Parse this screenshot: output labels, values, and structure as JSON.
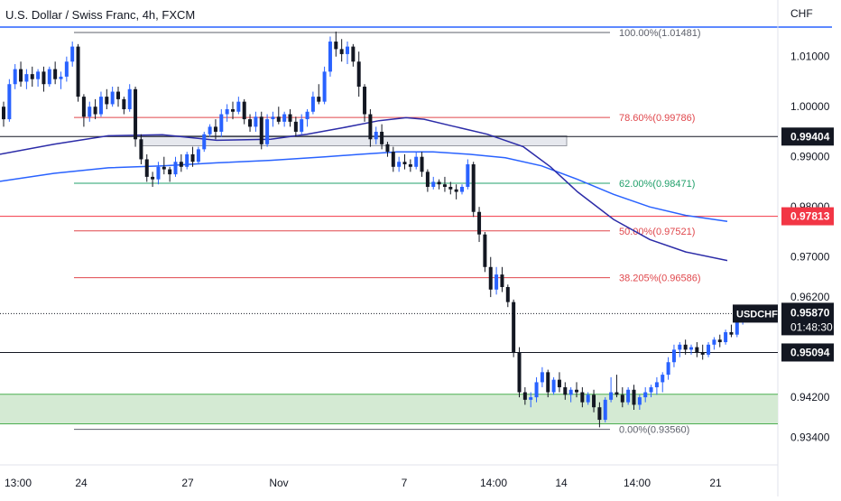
{
  "header": {
    "title": "U.S. Dollar / Swiss Franc, 4h, FXCM",
    "currency": "CHF"
  },
  "colors": {
    "up": "#2962ff",
    "down": "#131722",
    "fib_red": "#e0474c",
    "fib_green": "#22a06b",
    "fib_gray": "#5d606b",
    "ema_fast": "#2c2ca8",
    "ema_slow": "#2962ff",
    "zone_fill": "#d4ead3",
    "zone_border": "#4caf50",
    "badge_red": "#f23645",
    "badge_dark": "#131722",
    "axis_text": "#131722"
  },
  "chart_data": {
    "type": "candlestick",
    "symbol": "USDCHF",
    "timeframe": "4h",
    "x_ticks": [
      "13:00",
      "24",
      "27",
      "Nov",
      "7",
      "14:00",
      "14",
      "14:00",
      "21"
    ],
    "y_ticks": [
      1.01,
      1.0,
      0.99,
      0.98,
      0.97,
      0.962,
      0.942,
      0.934
    ],
    "y_tick_labels": [
      "1.01000",
      "1.00000",
      "0.99000",
      "0.98000",
      "0.97000",
      "0.96200",
      "0.94200",
      "0.93400"
    ],
    "ylim": [
      0.9285,
      1.0213
    ],
    "grid": false,
    "fib_levels": [
      {
        "label": "100.00%(1.01481)",
        "price": 1.01481,
        "color": "gray"
      },
      {
        "label": "78.60%(0.99786)",
        "price": 0.99786,
        "color": "red"
      },
      {
        "label": "62.00%(0.98471)",
        "price": 0.98471,
        "color": "green"
      },
      {
        "label": "50.00%(0.97521)",
        "price": 0.97521,
        "color": "red"
      },
      {
        "label": "38.205%(0.96586)",
        "price": 0.96586,
        "color": "red"
      },
      {
        "label": "0.00%(0.93560)",
        "price": 0.9356,
        "color": "gray"
      }
    ],
    "horizontal_levels": [
      {
        "price": 0.99404,
        "label": "0.99404",
        "badge": "dark"
      },
      {
        "price": 0.97813,
        "label": "0.97813",
        "badge": "red"
      },
      {
        "price": 0.95094,
        "label": "0.95094",
        "badge": "dark"
      }
    ],
    "current_price": {
      "price": 0.9587,
      "symbol_label": "USDCHF",
      "price_label": "0.95870",
      "countdown": "01:48:30"
    },
    "zones": [
      {
        "type": "demand",
        "top": 0.9426,
        "bottom": 0.9367
      },
      {
        "type": "resistance",
        "top": 0.9942,
        "bottom": 0.9922
      }
    ],
    "moving_averages": [
      {
        "color": "ema_slow",
        "points": [
          [
            0,
            0.9851
          ],
          [
            60,
            0.9867
          ],
          [
            120,
            0.9878
          ],
          [
            180,
            0.9882
          ],
          [
            240,
            0.9888
          ],
          [
            300,
            0.9893
          ],
          [
            360,
            0.99
          ],
          [
            400,
            0.9905
          ],
          [
            440,
            0.991
          ],
          [
            480,
            0.991
          ],
          [
            520,
            0.9905
          ],
          [
            560,
            0.9898
          ],
          [
            600,
            0.9882
          ],
          [
            640,
            0.9855
          ],
          [
            680,
            0.9825
          ],
          [
            720,
            0.98
          ],
          [
            760,
            0.9783
          ],
          [
            806,
            0.9771
          ]
        ]
      },
      {
        "color": "ema_fast",
        "points": [
          [
            0,
            0.9905
          ],
          [
            60,
            0.9925
          ],
          [
            120,
            0.9942
          ],
          [
            180,
            0.9944
          ],
          [
            240,
            0.9933
          ],
          [
            300,
            0.9935
          ],
          [
            340,
            0.9945
          ],
          [
            380,
            0.9958
          ],
          [
            420,
            0.9972
          ],
          [
            450,
            0.9978
          ],
          [
            470,
            0.9975
          ],
          [
            500,
            0.9962
          ],
          [
            540,
            0.9945
          ],
          [
            580,
            0.992
          ],
          [
            610,
            0.988
          ],
          [
            640,
            0.983
          ],
          [
            680,
            0.9775
          ],
          [
            720,
            0.9735
          ],
          [
            760,
            0.971
          ],
          [
            806,
            0.9693
          ]
        ]
      }
    ],
    "candles": [
      [
        1.0,
        1.001,
        0.996,
        0.9975
      ],
      [
        0.9975,
        1.0055,
        0.997,
        1.0045
      ],
      [
        1.0045,
        1.0085,
        1.0035,
        1.0075
      ],
      [
        1.0075,
        1.009,
        1.004,
        1.005
      ],
      [
        1.005,
        1.0075,
        1.0035,
        1.0065
      ],
      [
        1.0065,
        1.008,
        1.004,
        1.0055
      ],
      [
        1.0055,
        1.0075,
        1.004,
        1.007
      ],
      [
        1.007,
        1.008,
        1.003,
        1.0045
      ],
      [
        1.0045,
        1.008,
        1.004,
        1.0075
      ],
      [
        1.0075,
        1.009,
        1.0045,
        1.0055
      ],
      [
        1.0055,
        1.007,
        1.0035,
        1.006
      ],
      [
        1.006,
        1.01,
        1.005,
        1.009
      ],
      [
        1.009,
        1.013,
        1.008,
        1.012
      ],
      [
        1.012,
        1.0125,
        1.001,
        1.002
      ],
      [
        1.002,
        1.0025,
        0.996,
        0.998
      ],
      [
        0.998,
        1.001,
        0.997,
        1.0
      ],
      [
        1.0,
        1.0015,
        0.9975,
        0.9985
      ],
      [
        0.9985,
        1.003,
        0.998,
        1.002
      ],
      [
        1.002,
        1.0035,
        0.9995,
        1.0005
      ],
      [
        1.0005,
        1.004,
        1.0,
        1.003
      ],
      [
        1.003,
        1.004,
        1.0,
        1.0015
      ],
      [
        1.0015,
        1.002,
        0.9985,
        0.9995
      ],
      [
        0.9995,
        1.0045,
        0.999,
        1.0035
      ],
      [
        1.0035,
        1.004,
        0.992,
        0.9935
      ],
      [
        0.9935,
        0.9945,
        0.9885,
        0.9895
      ],
      [
        0.9895,
        0.9905,
        0.985,
        0.986
      ],
      [
        0.986,
        0.987,
        0.984,
        0.9855
      ],
      [
        0.9855,
        0.989,
        0.9845,
        0.988
      ],
      [
        0.988,
        0.99,
        0.9865,
        0.9875
      ],
      [
        0.9875,
        0.988,
        0.985,
        0.9865
      ],
      [
        0.9865,
        0.99,
        0.986,
        0.989
      ],
      [
        0.989,
        0.9905,
        0.987,
        0.988
      ],
      [
        0.988,
        0.991,
        0.9875,
        0.9905
      ],
      [
        0.9905,
        0.992,
        0.988,
        0.989
      ],
      [
        0.989,
        0.992,
        0.9885,
        0.9915
      ],
      [
        0.9915,
        0.995,
        0.991,
        0.9945
      ],
      [
        0.9945,
        0.9965,
        0.994,
        0.996
      ],
      [
        0.996,
        0.9975,
        0.9935,
        0.995
      ],
      [
        0.995,
        0.9995,
        0.994,
        0.9985
      ],
      [
        0.9985,
        1.0005,
        0.997,
        0.9995
      ],
      [
        0.9995,
        1.001,
        0.9975,
        0.999
      ],
      [
        0.999,
        1.002,
        0.9985,
        1.001
      ],
      [
        1.001,
        1.0015,
        0.9965,
        0.9975
      ],
      [
        0.9975,
        0.9985,
        0.995,
        0.996
      ],
      [
        0.996,
        0.999,
        0.995,
        0.998
      ],
      [
        0.998,
        0.999,
        0.9915,
        0.9925
      ],
      [
        0.9925,
        0.9985,
        0.992,
        0.9975
      ],
      [
        0.9975,
        0.999,
        0.996,
        0.998
      ],
      [
        0.998,
        1.0,
        0.9965,
        0.997
      ],
      [
        0.997,
        0.999,
        0.996,
        0.9985
      ],
      [
        0.9985,
        0.9995,
        0.996,
        0.997
      ],
      [
        0.997,
        0.998,
        0.994,
        0.995
      ],
      [
        0.995,
        0.9985,
        0.9945,
        0.9975
      ],
      [
        0.9975,
        0.9995,
        0.996,
        0.999
      ],
      [
        0.999,
        1.003,
        0.9985,
        1.002
      ],
      [
        1.002,
        1.0045,
        1.0005,
        1.001
      ],
      [
        1.001,
        1.008,
        1.0005,
        1.007
      ],
      [
        1.007,
        1.014,
        1.006,
        1.013
      ],
      [
        1.013,
        1.015,
        1.01,
        1.0115
      ],
      [
        1.0115,
        1.0135,
        1.009,
        1.0105
      ],
      [
        1.0105,
        1.013,
        1.0085,
        1.012
      ],
      [
        1.012,
        1.0125,
        1.008,
        1.009
      ],
      [
        1.009,
        1.011,
        1.002,
        1.004
      ],
      [
        1.004,
        1.0045,
        0.997,
        0.9985
      ],
      [
        0.9985,
        0.9995,
        0.992,
        0.9935
      ],
      [
        0.9935,
        0.996,
        0.9925,
        0.995
      ],
      [
        0.995,
        0.9965,
        0.9915,
        0.9925
      ],
      [
        0.9925,
        0.993,
        0.99,
        0.991
      ],
      [
        0.991,
        0.992,
        0.987,
        0.988
      ],
      [
        0.988,
        0.99,
        0.987,
        0.989
      ],
      [
        0.989,
        0.9905,
        0.9875,
        0.9885
      ],
      [
        0.9885,
        0.9895,
        0.987,
        0.988
      ],
      [
        0.988,
        0.991,
        0.9875,
        0.99
      ],
      [
        0.99,
        0.991,
        0.986,
        0.987
      ],
      [
        0.987,
        0.9875,
        0.983,
        0.984
      ],
      [
        0.984,
        0.986,
        0.9835,
        0.985
      ],
      [
        0.985,
        0.9855,
        0.9835,
        0.9845
      ],
      [
        0.9845,
        0.986,
        0.983,
        0.984
      ],
      [
        0.984,
        0.985,
        0.9825,
        0.9835
      ],
      [
        0.9835,
        0.9845,
        0.9815,
        0.983
      ],
      [
        0.983,
        0.9845,
        0.9825,
        0.984
      ],
      [
        0.984,
        0.9895,
        0.9835,
        0.9885
      ],
      [
        0.9885,
        0.989,
        0.978,
        0.979
      ],
      [
        0.979,
        0.98,
        0.973,
        0.9745
      ],
      [
        0.9745,
        0.975,
        0.967,
        0.968
      ],
      [
        0.968,
        0.97,
        0.962,
        0.9635
      ],
      [
        0.9635,
        0.968,
        0.9625,
        0.9665
      ],
      [
        0.9665,
        0.968,
        0.963,
        0.964
      ],
      [
        0.964,
        0.9645,
        0.96,
        0.961
      ],
      [
        0.961,
        0.9615,
        0.95,
        0.951
      ],
      [
        0.951,
        0.952,
        0.942,
        0.943
      ],
      [
        0.943,
        0.944,
        0.9405,
        0.9415
      ],
      [
        0.9415,
        0.943,
        0.94,
        0.942
      ],
      [
        0.942,
        0.946,
        0.941,
        0.945
      ],
      [
        0.945,
        0.948,
        0.944,
        0.947
      ],
      [
        0.947,
        0.9475,
        0.942,
        0.943
      ],
      [
        0.943,
        0.946,
        0.9425,
        0.9455
      ],
      [
        0.9455,
        0.947,
        0.943,
        0.944
      ],
      [
        0.944,
        0.945,
        0.9415,
        0.9425
      ],
      [
        0.9425,
        0.944,
        0.941,
        0.9435
      ],
      [
        0.9435,
        0.945,
        0.942,
        0.943
      ],
      [
        0.943,
        0.944,
        0.94,
        0.941
      ],
      [
        0.941,
        0.943,
        0.9405,
        0.9425
      ],
      [
        0.9425,
        0.9435,
        0.939,
        0.94
      ],
      [
        0.94,
        0.941,
        0.936,
        0.9375
      ],
      [
        0.9375,
        0.942,
        0.937,
        0.9415
      ],
      [
        0.9415,
        0.946,
        0.941,
        0.943
      ],
      [
        0.943,
        0.9465,
        0.942,
        0.9425
      ],
      [
        0.9425,
        0.944,
        0.94,
        0.941
      ],
      [
        0.941,
        0.944,
        0.9405,
        0.9435
      ],
      [
        0.9435,
        0.9445,
        0.9395,
        0.9405
      ],
      [
        0.9405,
        0.9425,
        0.9395,
        0.942
      ],
      [
        0.942,
        0.944,
        0.941,
        0.943
      ],
      [
        0.943,
        0.9445,
        0.942,
        0.944
      ],
      [
        0.944,
        0.946,
        0.9425,
        0.945
      ],
      [
        0.945,
        0.947,
        0.943,
        0.9465
      ],
      [
        0.9465,
        0.95,
        0.9455,
        0.949
      ],
      [
        0.949,
        0.9525,
        0.948,
        0.9515
      ],
      [
        0.9515,
        0.953,
        0.95,
        0.9525
      ],
      [
        0.9525,
        0.9535,
        0.9505,
        0.9515
      ],
      [
        0.9515,
        0.9525,
        0.9505,
        0.952
      ],
      [
        0.952,
        0.953,
        0.95,
        0.951
      ],
      [
        0.951,
        0.9525,
        0.9495,
        0.9505
      ],
      [
        0.9505,
        0.953,
        0.95,
        0.9525
      ],
      [
        0.9525,
        0.954,
        0.9515,
        0.9535
      ],
      [
        0.9535,
        0.9545,
        0.952,
        0.953
      ],
      [
        0.953,
        0.9555,
        0.9525,
        0.955
      ],
      [
        0.955,
        0.9565,
        0.954,
        0.9545
      ],
      [
        0.9545,
        0.9575,
        0.954,
        0.957
      ],
      [
        0.957,
        0.9595,
        0.9565,
        0.959
      ],
      [
        0.959,
        0.9595,
        0.9575,
        0.9587
      ]
    ]
  }
}
